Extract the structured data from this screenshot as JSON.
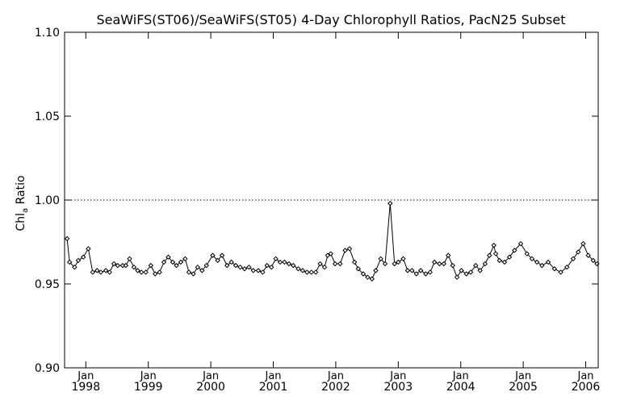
{
  "chart_data": {
    "type": "line",
    "title": "SeaWiFS(ST06)/SeaWiFS(ST05) 4-Day Chlorophyll Ratios, PacN25 Subset",
    "ylabel": {
      "main": "Chl",
      "sub": "a",
      "rest": " Ratio"
    },
    "xlabel": "",
    "ylim": [
      0.9,
      1.1
    ],
    "xlim": [
      1997.66,
      2006.2
    ],
    "y_ticks": [
      {
        "value": 0.9,
        "label": "0.90"
      },
      {
        "value": 0.95,
        "label": "0.95"
      },
      {
        "value": 1.0,
        "label": "1.00"
      },
      {
        "value": 1.05,
        "label": "1.05"
      },
      {
        "value": 1.1,
        "label": "1.10"
      }
    ],
    "x_ticks": [
      {
        "value": 1998,
        "month": "Jan",
        "year": "1998"
      },
      {
        "value": 1999,
        "month": "Jan",
        "year": "1999"
      },
      {
        "value": 2000,
        "month": "Jan",
        "year": "2000"
      },
      {
        "value": 2001,
        "month": "Jan",
        "year": "2001"
      },
      {
        "value": 2002,
        "month": "Jan",
        "year": "2002"
      },
      {
        "value": 2003,
        "month": "Jan",
        "year": "2003"
      },
      {
        "value": 2004,
        "month": "Jan",
        "year": "2004"
      },
      {
        "value": 2005,
        "month": "Jan",
        "year": "2005"
      },
      {
        "value": 2006,
        "month": "Jan",
        "year": "2006"
      }
    ],
    "reference_line": 1.0,
    "grid": false,
    "series": [
      {
        "marker": "diamond",
        "color": "#000000",
        "points": [
          [
            1997.7,
            0.977
          ],
          [
            1997.74,
            0.963
          ],
          [
            1997.82,
            0.96
          ],
          [
            1997.88,
            0.964
          ],
          [
            1997.96,
            0.966
          ],
          [
            1998.04,
            0.971
          ],
          [
            1998.11,
            0.957
          ],
          [
            1998.18,
            0.958
          ],
          [
            1998.24,
            0.957
          ],
          [
            1998.32,
            0.958
          ],
          [
            1998.38,
            0.957
          ],
          [
            1998.45,
            0.962
          ],
          [
            1998.51,
            0.961
          ],
          [
            1998.59,
            0.961
          ],
          [
            1998.64,
            0.961
          ],
          [
            1998.7,
            0.965
          ],
          [
            1998.77,
            0.96
          ],
          [
            1998.83,
            0.958
          ],
          [
            1998.89,
            0.957
          ],
          [
            1998.96,
            0.957
          ],
          [
            1999.04,
            0.961
          ],
          [
            1999.11,
            0.956
          ],
          [
            1999.18,
            0.957
          ],
          [
            1999.25,
            0.963
          ],
          [
            1999.32,
            0.966
          ],
          [
            1999.39,
            0.963
          ],
          [
            1999.45,
            0.961
          ],
          [
            1999.52,
            0.963
          ],
          [
            1999.59,
            0.965
          ],
          [
            1999.65,
            0.957
          ],
          [
            1999.72,
            0.956
          ],
          [
            1999.79,
            0.96
          ],
          [
            1999.86,
            0.958
          ],
          [
            1999.93,
            0.961
          ],
          [
            2000.03,
            0.967
          ],
          [
            2000.11,
            0.964
          ],
          [
            2000.18,
            0.967
          ],
          [
            2000.26,
            0.961
          ],
          [
            2000.33,
            0.963
          ],
          [
            2000.4,
            0.961
          ],
          [
            2000.47,
            0.96
          ],
          [
            2000.54,
            0.959
          ],
          [
            2000.61,
            0.96
          ],
          [
            2000.68,
            0.958
          ],
          [
            2000.76,
            0.958
          ],
          [
            2000.83,
            0.957
          ],
          [
            2000.9,
            0.961
          ],
          [
            2000.97,
            0.96
          ],
          [
            2001.04,
            0.965
          ],
          [
            2001.11,
            0.963
          ],
          [
            2001.18,
            0.963
          ],
          [
            2001.25,
            0.962
          ],
          [
            2001.32,
            0.961
          ],
          [
            2001.4,
            0.959
          ],
          [
            2001.47,
            0.958
          ],
          [
            2001.54,
            0.957
          ],
          [
            2001.61,
            0.957
          ],
          [
            2001.68,
            0.957
          ],
          [
            2001.75,
            0.962
          ],
          [
            2001.82,
            0.96
          ],
          [
            2001.87,
            0.967
          ],
          [
            2001.92,
            0.968
          ],
          [
            2001.99,
            0.962
          ],
          [
            2002.07,
            0.962
          ],
          [
            2002.15,
            0.97
          ],
          [
            2002.22,
            0.971
          ],
          [
            2002.3,
            0.963
          ],
          [
            2002.36,
            0.959
          ],
          [
            2002.44,
            0.956
          ],
          [
            2002.51,
            0.954
          ],
          [
            2002.58,
            0.953
          ],
          [
            2002.64,
            0.958
          ],
          [
            2002.72,
            0.965
          ],
          [
            2002.79,
            0.962
          ],
          [
            2002.87,
            0.998
          ],
          [
            2002.94,
            0.962
          ],
          [
            2003.0,
            0.963
          ],
          [
            2003.08,
            0.965
          ],
          [
            2003.15,
            0.958
          ],
          [
            2003.22,
            0.958
          ],
          [
            2003.29,
            0.956
          ],
          [
            2003.36,
            0.958
          ],
          [
            2003.44,
            0.956
          ],
          [
            2003.51,
            0.957
          ],
          [
            2003.58,
            0.963
          ],
          [
            2003.66,
            0.962
          ],
          [
            2003.73,
            0.962
          ],
          [
            2003.8,
            0.967
          ],
          [
            2003.87,
            0.961
          ],
          [
            2003.94,
            0.954
          ],
          [
            2004.01,
            0.958
          ],
          [
            2004.09,
            0.956
          ],
          [
            2004.16,
            0.957
          ],
          [
            2004.24,
            0.961
          ],
          [
            2004.31,
            0.958
          ],
          [
            2004.39,
            0.962
          ],
          [
            2004.46,
            0.967
          ],
          [
            2004.53,
            0.973
          ],
          [
            2004.56,
            0.968
          ],
          [
            2004.62,
            0.964
          ],
          [
            2004.7,
            0.963
          ],
          [
            2004.78,
            0.966
          ],
          [
            2004.86,
            0.97
          ],
          [
            2004.96,
            0.974
          ],
          [
            2005.06,
            0.968
          ],
          [
            2005.14,
            0.965
          ],
          [
            2005.22,
            0.963
          ],
          [
            2005.3,
            0.961
          ],
          [
            2005.4,
            0.963
          ],
          [
            2005.5,
            0.959
          ],
          [
            2005.6,
            0.957
          ],
          [
            2005.7,
            0.96
          ],
          [
            2005.8,
            0.965
          ],
          [
            2005.88,
            0.969
          ],
          [
            2005.96,
            0.974
          ],
          [
            2006.04,
            0.967
          ],
          [
            2006.12,
            0.964
          ],
          [
            2006.18,
            0.962
          ]
        ]
      }
    ]
  }
}
